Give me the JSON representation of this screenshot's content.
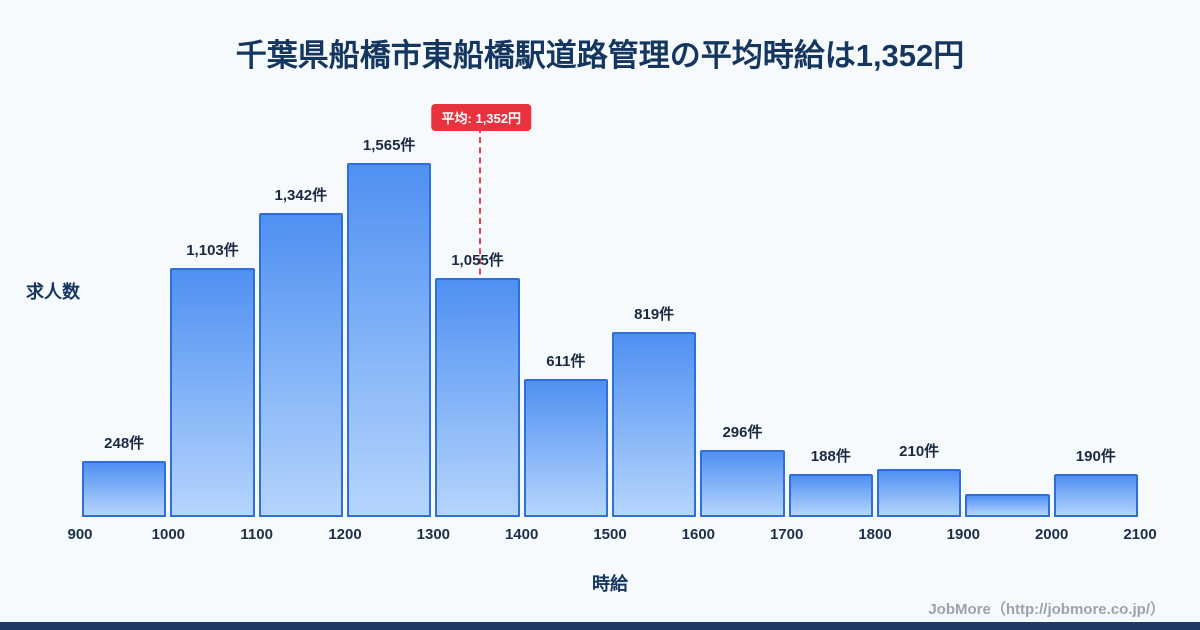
{
  "page": {
    "title": "千葉県船橋市東船橋駅道路管理の平均時給は1,352円",
    "footer": "JobMore（http://jobmore.co.jp/）"
  },
  "chart_data": {
    "type": "bar",
    "title": "千葉県船橋市東船橋駅道路管理の平均時給は1,352円",
    "xlabel": "時給",
    "ylabel": "求人数",
    "x_tick_labels": [
      "900",
      "1000",
      "1100",
      "1200",
      "1300",
      "1400",
      "1500",
      "1600",
      "1700",
      "1800",
      "1900",
      "2000",
      "2100"
    ],
    "bin_edges": [
      900,
      1000,
      1100,
      1200,
      1300,
      1400,
      1500,
      1600,
      1700,
      1800,
      1900,
      2000,
      2100
    ],
    "values": [
      248,
      1103,
      1342,
      1565,
      1055,
      611,
      819,
      296,
      188,
      210,
      100,
      190
    ],
    "bar_labels": [
      "248件",
      "1,103件",
      "1,342件",
      "1,565件",
      "1,055件",
      "611件",
      "819件",
      "296件",
      "188件",
      "210件",
      "",
      "190件"
    ],
    "average": {
      "value": 1352,
      "label": "平均: 1,352円"
    },
    "x_range": [
      900,
      2100
    ],
    "ylim": [
      0,
      1600
    ],
    "grid": false,
    "legend": "none",
    "colors": {
      "bar_top": "#4f90f2",
      "bar_bottom": "#b5d5fc",
      "bar_border": "#2f6fd8",
      "average_line": "#e8414b",
      "average_badge": "#e8323e",
      "title": "#15365f",
      "background": "#f7fafd",
      "footer_text": "#9aa3ad"
    }
  }
}
